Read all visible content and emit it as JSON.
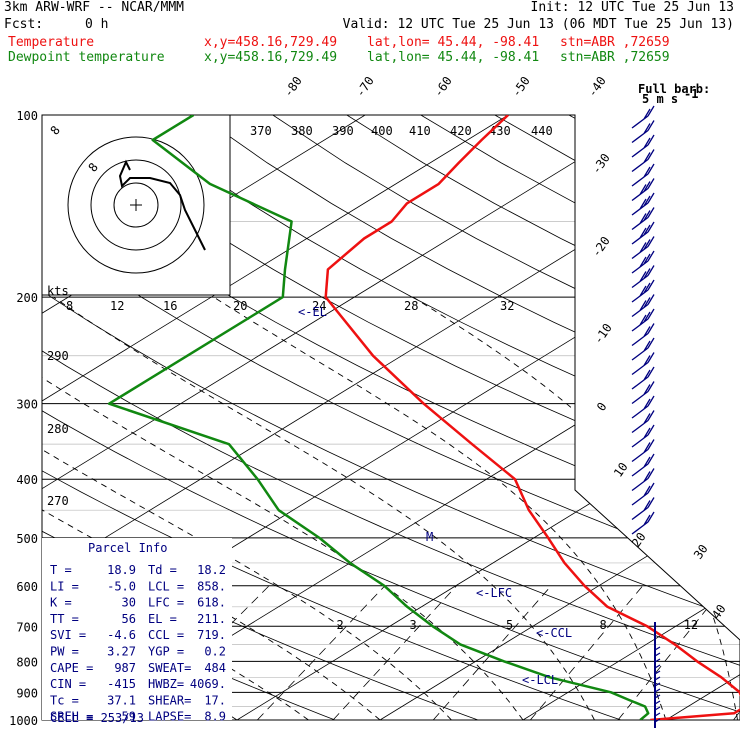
{
  "header": {
    "model": "3km ARW-WRF -- NCAR/MMM",
    "init": "Init: 12 UTC Tue 25 Jun 13",
    "fcst_label": "Fcst:",
    "fcst_value": "0 h",
    "valid": "Valid: 12 UTC Tue 25 Jun 13 (06 MDT Tue 25 Jun 13)",
    "temp_line": {
      "label": "Temperature",
      "xy": "x,y=458.16,729.49",
      "latlon": "lat,lon= 45.44, -98.41",
      "stn": "stn=ABR ,72659"
    },
    "dew_line": {
      "label": "Dewpoint temperature",
      "xy": "x,y=458.16,729.49",
      "latlon": "lat,lon= 45.44, -98.41",
      "stn": "stn=ABR ,72659"
    }
  },
  "colors": {
    "temperature": "#ee1111",
    "dewpoint": "#118811",
    "wind": "#000080",
    "grid": "#000000"
  },
  "barb_legend": {
    "line1": "Full barb:",
    "line2": "5 m s",
    "exp": "-1"
  },
  "parcel_info": {
    "title": "Parcel Info",
    "rows": [
      [
        "T  =",
        "18.9",
        "Td =",
        "18.2"
      ],
      [
        "LI =",
        "-5.0",
        "LCL =",
        "858."
      ],
      [
        "K  =",
        "30",
        "LFC =",
        "618."
      ],
      [
        "TT =",
        "56",
        "EL  =",
        "211."
      ],
      [
        "SVI =",
        "-4.6",
        "CCL =",
        "719."
      ],
      [
        "PW =",
        "3.27",
        "YGP =",
        "0.2"
      ],
      [
        "CAPE =",
        "987",
        "SWEAT=",
        "484"
      ],
      [
        "CIN =",
        "-415",
        "HWBZ=",
        "4069."
      ],
      [
        "Tc =",
        "37.1",
        "SHEAR=",
        "17."
      ],
      [
        "SREH =",
        "59",
        "LAPSE=",
        "8.9"
      ]
    ],
    "cell": "CELL = 253/13"
  },
  "level_markers": {
    "el": "<-EL",
    "lfc": "<-LFC",
    "ccl": "<-CCL",
    "lcl": "<-LCL",
    "m": "M"
  },
  "hodograph": {
    "kts_label": "kts",
    "rings": [
      "8",
      "12",
      "16",
      "20",
      "24",
      "28",
      "32"
    ]
  },
  "chart_data": {
    "type": "line",
    "pressure_levels": [
      100,
      200,
      300,
      400,
      500,
      600,
      700,
      800,
      900,
      1000
    ],
    "pressure_labels": [
      "100",
      "200",
      "300",
      "400",
      "500",
      "600",
      "700",
      "800",
      "900",
      "1000"
    ],
    "isotherm_labels": [
      "-80",
      "-70",
      "-60",
      "-50",
      "-40",
      "-30",
      "-20",
      "-10",
      "0",
      "10",
      "20",
      "30",
      "40"
    ],
    "theta_labels_upper": [
      "370",
      "380",
      "390",
      "400",
      "410",
      "420",
      "430",
      "440"
    ],
    "theta_labels_left": [
      "290",
      "280",
      "270"
    ],
    "mixing_ratio_labels": [
      "2",
      "3",
      "5",
      "8",
      "12",
      "20"
    ],
    "series": [
      {
        "name": "Temperature",
        "points": [
          [
            1000,
            18.9
          ],
          [
            975,
            24
          ],
          [
            950,
            24
          ],
          [
            925,
            23
          ],
          [
            900,
            22
          ],
          [
            850,
            19
          ],
          [
            800,
            15.5
          ],
          [
            750,
            12
          ],
          [
            700,
            8
          ],
          [
            650,
            3
          ],
          [
            600,
            -1
          ],
          [
            550,
            -5
          ],
          [
            500,
            -9
          ],
          [
            450,
            -13.5
          ],
          [
            400,
            -18
          ],
          [
            350,
            -25
          ],
          [
            300,
            -33
          ],
          [
            250,
            -42
          ],
          [
            200,
            -52
          ],
          [
            180,
            -55
          ],
          [
            160,
            -56
          ],
          [
            150,
            -56
          ],
          [
            140,
            -57
          ],
          [
            130,
            -57
          ],
          [
            120,
            -58
          ],
          [
            110,
            -59
          ],
          [
            100,
            -60
          ]
        ]
      },
      {
        "name": "Dewpoint temperature",
        "points": [
          [
            1000,
            18.2
          ],
          [
            975,
            18
          ],
          [
            950,
            17
          ],
          [
            925,
            15
          ],
          [
            900,
            13
          ],
          [
            850,
            7
          ],
          [
            800,
            2
          ],
          [
            750,
            -3
          ],
          [
            700,
            -7
          ],
          [
            650,
            -11
          ],
          [
            600,
            -15
          ],
          [
            550,
            -20
          ],
          [
            500,
            -25
          ],
          [
            450,
            -31
          ],
          [
            400,
            -36
          ],
          [
            350,
            -42
          ],
          [
            300,
            -55
          ],
          [
            250,
            -55
          ],
          [
            200,
            -55
          ],
          [
            180,
            -58
          ],
          [
            150,
            -63
          ],
          [
            130,
            -73
          ],
          [
            110,
            -82
          ],
          [
            100,
            -82
          ]
        ]
      }
    ],
    "xlabel": "",
    "ylabel": ""
  }
}
